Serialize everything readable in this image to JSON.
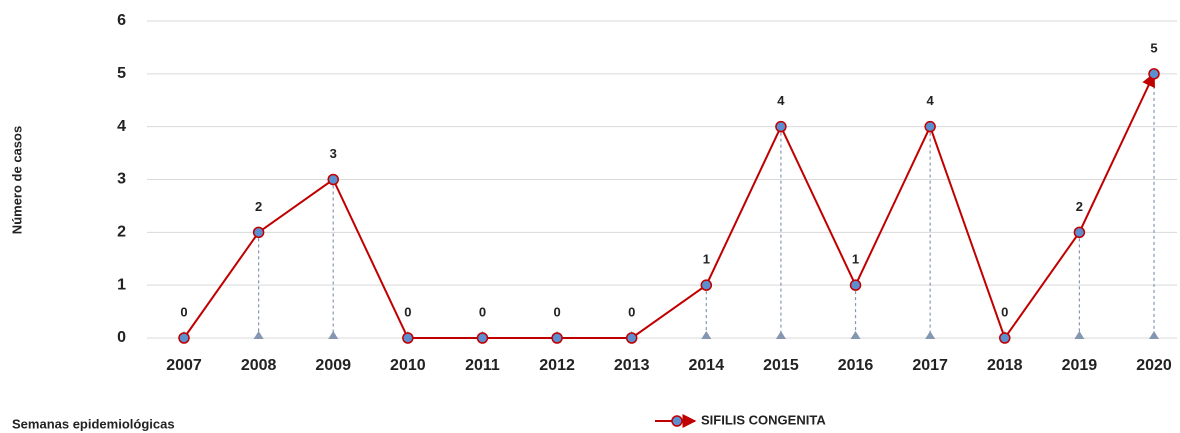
{
  "chart_data": {
    "type": "line",
    "y_label": "Número de casos",
    "x_label": "Semanas epidemiológicas",
    "categories": [
      "2007",
      "2008",
      "2009",
      "2010",
      "2011",
      "2012",
      "2013",
      "2014",
      "2015",
      "2016",
      "2017",
      "2018",
      "2019",
      "2020"
    ],
    "series": [
      {
        "name": "SIFILIS CONGENITA",
        "color": "#c00000",
        "marker_color": "#5b8fd0",
        "values": [
          0,
          2,
          3,
          0,
          0,
          0,
          0,
          1,
          4,
          1,
          4,
          0,
          2,
          5
        ]
      }
    ],
    "ylim": [
      0,
      6
    ],
    "yticks": [
      0,
      1,
      2,
      3,
      4,
      5,
      6
    ],
    "grid": true,
    "legend": "bottom"
  }
}
